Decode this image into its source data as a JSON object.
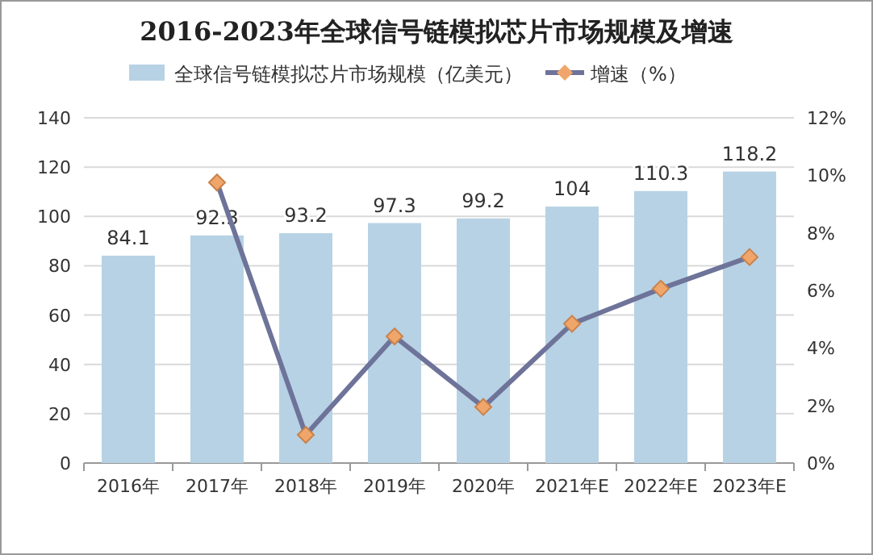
{
  "chart_data": {
    "type": "bar",
    "title": "2016-2023年全球信号链模拟芯片市场规模及增速",
    "categories": [
      "2016年",
      "2017年",
      "2018年",
      "2019年",
      "2020年",
      "2021年E",
      "2022年E",
      "2023年E"
    ],
    "series": [
      {
        "name": "全球信号链模拟芯片市场规模（亿美元）",
        "color": "#b7d2e4",
        "values": [
          84.1,
          92.3,
          93.2,
          97.3,
          99.2,
          104,
          110.3,
          118.2
        ],
        "data_labels": true
      },
      {
        "name": "增速（%）",
        "type": "line",
        "axis": "y2",
        "color": "#6e7399",
        "marker": "diamond",
        "values": [
          null,
          9.75,
          0.98,
          4.4,
          1.95,
          4.84,
          6.06,
          7.16
        ]
      }
    ],
    "ylim": [
      0,
      140
    ],
    "yticks": [
      0,
      20,
      40,
      60,
      80,
      100,
      120,
      140
    ],
    "y2lim": [
      0,
      12
    ],
    "y2ticks": [
      {
        "value": 0,
        "label": "0%"
      },
      {
        "value": 2,
        "label": "2%"
      },
      {
        "value": 4,
        "label": "4%"
      },
      {
        "value": 6,
        "label": "6%"
      },
      {
        "value": 8,
        "label": "8%"
      },
      {
        "value": 10,
        "label": "10%"
      },
      {
        "value": 12,
        "label": "12%"
      }
    ],
    "grid": "y",
    "legend": "top"
  }
}
